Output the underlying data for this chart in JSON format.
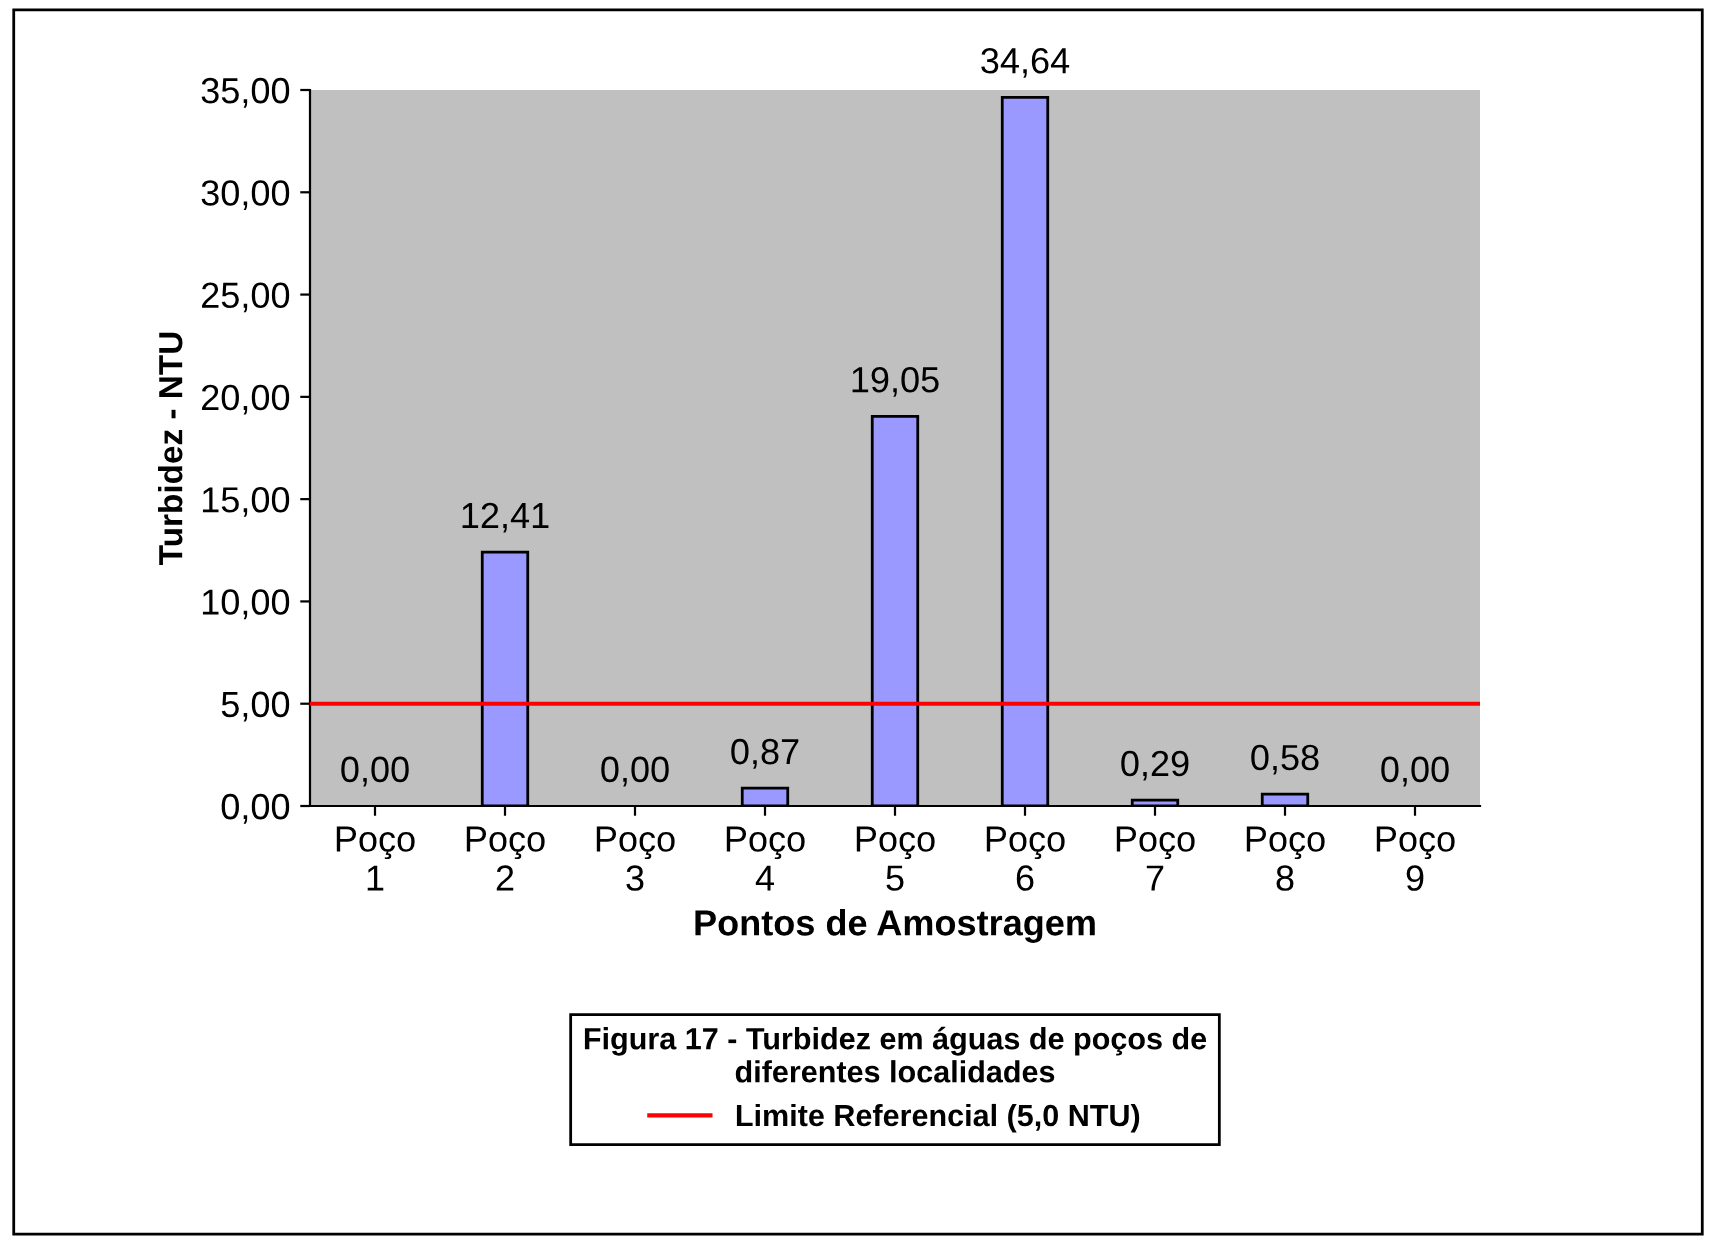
{
  "chart_data": {
    "type": "bar",
    "xlabel": "Pontos de Amostragem",
    "ylabel": "Turbidez - NTU",
    "legend_title": "Figura 17 - Turbidez em águas de poços de\ndiferentes localidades",
    "categories": [
      "Poço\n1",
      "Poço\n2",
      "Poço\n3",
      "Poço\n4",
      "Poço\n5",
      "Poço\n6",
      "Poço\n7",
      "Poço\n8",
      "Poço\n9"
    ],
    "values": [
      0,
      12.41,
      0,
      0.87,
      19.05,
      34.64,
      0.29,
      0.58,
      0
    ],
    "value_labels": [
      "0,00",
      "12,41",
      "0,00",
      "0,87",
      "19,05",
      "34,64",
      "0,29",
      "0,58",
      "0,00"
    ],
    "color": "#9999ff",
    "ylim": [
      0,
      35
    ],
    "yticks": [
      {
        "value": 0,
        "label": "0,00"
      },
      {
        "value": 5,
        "label": "5,00"
      },
      {
        "value": 10,
        "label": "10,00"
      },
      {
        "value": 15,
        "label": "15,00"
      },
      {
        "value": 20,
        "label": "20,00"
      },
      {
        "value": 25,
        "label": "25,00"
      },
      {
        "value": 30,
        "label": "30,00"
      },
      {
        "value": 35,
        "label": "35,00"
      }
    ],
    "ref_lines": [
      {
        "axis": "y",
        "value": 5,
        "label": "Limite Referencial (5,0 NTU)",
        "color": "#ff0000"
      }
    ],
    "grid": false,
    "legend": "bottom"
  }
}
